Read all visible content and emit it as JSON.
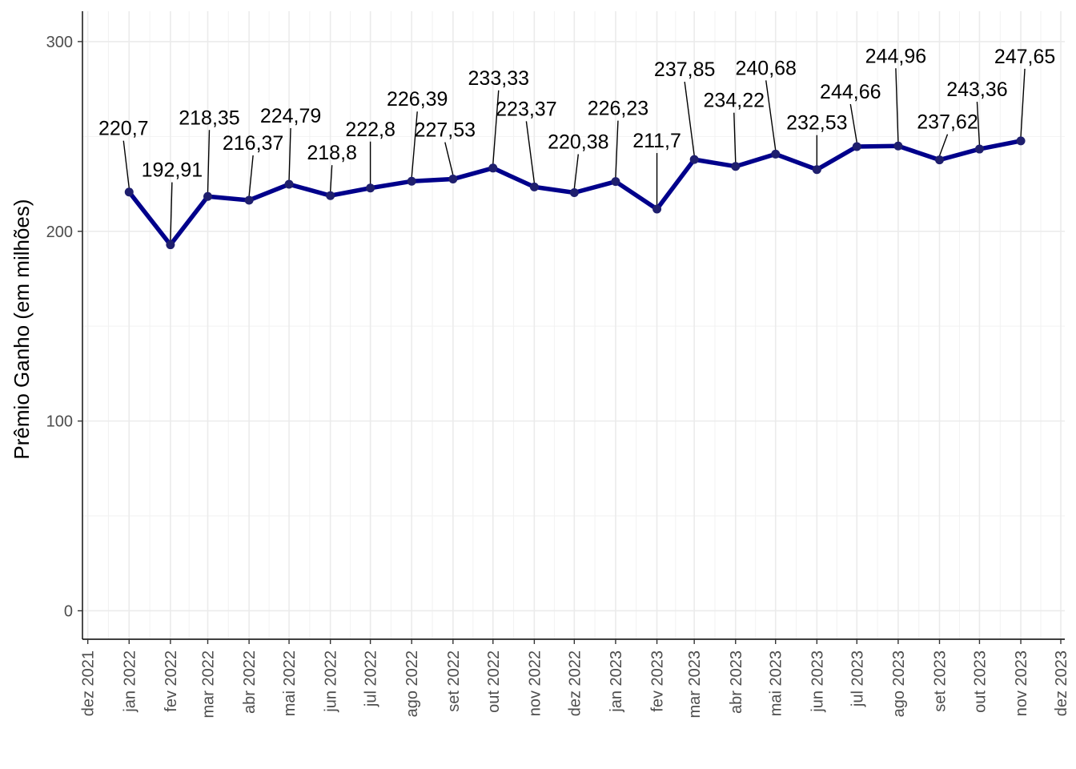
{
  "chart_data": {
    "type": "line",
    "title": "",
    "xlabel": "",
    "ylabel": "Prêmio Ganho (em milhões)",
    "ylim": [
      -15,
      316
    ],
    "yticks": [
      0,
      100,
      200,
      300
    ],
    "grid": true,
    "x_ticks": [
      "dez 2021",
      "jan 2022",
      "fev 2022",
      "mar 2022",
      "abr 2022",
      "mai 2022",
      "jun 2022",
      "jul 2022",
      "ago 2022",
      "set 2022",
      "out 2022",
      "nov 2022",
      "dez 2022",
      "jan 2023",
      "fev 2023",
      "mar 2023",
      "abr 2023",
      "mai 2023",
      "jun 2023",
      "jul 2023",
      "ago 2023",
      "set 2023",
      "out 2023",
      "nov 2023",
      "dez 2023"
    ],
    "x_tick_dates": [
      "2021-12-01",
      "2022-01-01",
      "2022-02-01",
      "2022-03-01",
      "2022-04-01",
      "2022-05-01",
      "2022-06-01",
      "2022-07-01",
      "2022-08-01",
      "2022-09-01",
      "2022-10-01",
      "2022-11-01",
      "2022-12-01",
      "2023-01-01",
      "2023-02-01",
      "2023-03-01",
      "2023-04-01",
      "2023-05-01",
      "2023-06-01",
      "2023-07-01",
      "2023-08-01",
      "2023-09-01",
      "2023-10-01",
      "2023-11-01",
      "2023-12-01"
    ],
    "line_color": "#00008B",
    "series": [
      {
        "x": [
          "2022-01-01",
          "2022-02-01",
          "2022-03-01",
          "2022-04-01",
          "2022-05-01",
          "2022-06-01",
          "2022-07-01",
          "2022-08-01",
          "2022-09-01",
          "2022-10-01",
          "2022-11-01",
          "2022-12-01",
          "2023-01-01",
          "2023-02-01",
          "2023-03-01",
          "2023-04-01",
          "2023-05-01",
          "2023-06-01",
          "2023-07-01",
          "2023-08-01",
          "2023-09-01",
          "2023-10-01",
          "2023-11-01"
        ],
        "values": [
          220.7,
          192.91,
          218.35,
          216.37,
          224.79,
          218.8,
          222.8,
          226.39,
          227.53,
          233.33,
          223.37,
          220.38,
          226.23,
          211.7,
          237.85,
          234.22,
          240.68,
          232.53,
          244.66,
          244.96,
          237.62,
          243.36,
          247.65
        ],
        "labels": [
          "220,7",
          "192,91",
          "218,35",
          "216,37",
          "224,79",
          "218,8",
          "222,8",
          "226,39",
          "227,53",
          "233,33",
          "223,37",
          "220,38",
          "226,23",
          "211,7",
          "237,85",
          "234,22",
          "240,68",
          "232,53",
          "244,66",
          "244,96",
          "237,62",
          "243,36",
          "247,65"
        ]
      }
    ]
  }
}
